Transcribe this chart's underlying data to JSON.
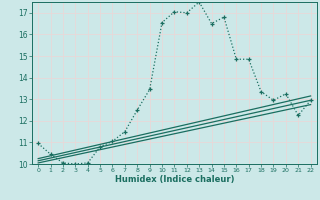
{
  "xlabel": "Humidex (Indice chaleur)",
  "ylabel": "",
  "bg_color": "#cce8e8",
  "grid_color": "#e8d8d8",
  "line_color": "#1a6e60",
  "xlim": [
    -0.5,
    22.5
  ],
  "ylim": [
    10,
    17.5
  ],
  "yticks": [
    10,
    11,
    12,
    13,
    14,
    15,
    16,
    17
  ],
  "xticks": [
    0,
    1,
    2,
    3,
    4,
    5,
    6,
    7,
    8,
    9,
    10,
    11,
    12,
    13,
    14,
    15,
    16,
    17,
    18,
    19,
    20,
    21,
    22
  ],
  "main_line_x": [
    0,
    1,
    2,
    3,
    4,
    5,
    6,
    7,
    8,
    9,
    10,
    11,
    12,
    13,
    14,
    15,
    16,
    17,
    18,
    19,
    20,
    21,
    22
  ],
  "main_line_y": [
    10.95,
    10.45,
    10.05,
    10.0,
    10.05,
    10.8,
    11.05,
    11.5,
    12.5,
    13.45,
    16.55,
    17.05,
    17.0,
    17.5,
    16.5,
    16.8,
    14.85,
    14.85,
    13.35,
    12.95,
    13.25,
    12.25,
    12.95
  ],
  "linear_lines": [
    {
      "x": [
        0,
        22
      ],
      "y": [
        10.05,
        12.75
      ]
    },
    {
      "x": [
        0,
        22
      ],
      "y": [
        10.15,
        12.95
      ]
    },
    {
      "x": [
        0,
        22
      ],
      "y": [
        10.25,
        13.15
      ]
    }
  ]
}
